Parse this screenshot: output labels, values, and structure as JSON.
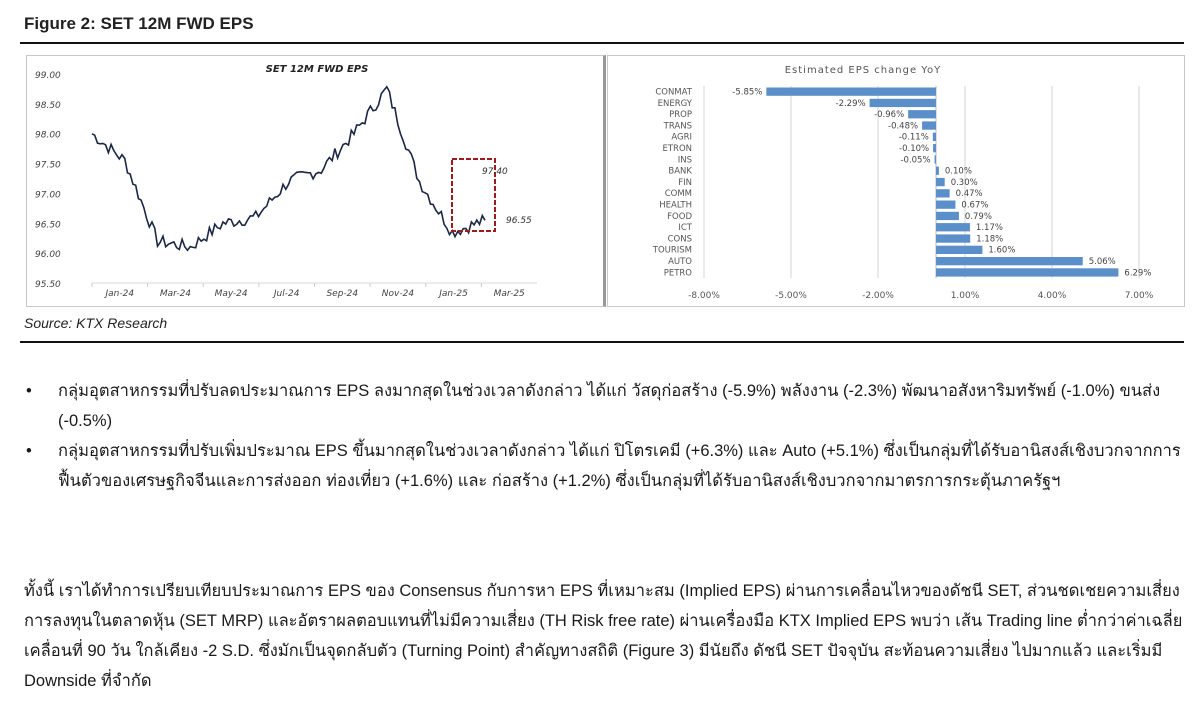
{
  "figure": {
    "title": "Figure 2: SET 12M FWD EPS",
    "source": "Source: KTX Research"
  },
  "chart_data": [
    {
      "type": "line",
      "title": "SET 12M FWD EPS",
      "xlabel": "",
      "ylabel": "",
      "x_ticks": [
        "Jan-24",
        "Mar-24",
        "May-24",
        "Jul-24",
        "Sep-24",
        "Nov-24",
        "Jan-25",
        "Mar-25"
      ],
      "y_ticks": [
        "99.00",
        "98.50",
        "98.00",
        "97.50",
        "97.00",
        "96.50",
        "96.00",
        "95.50"
      ],
      "ylim": [
        95.5,
        99.0
      ],
      "grid": false,
      "series": [
        {
          "name": "SET 12M FWD EPS",
          "x": [
            "Jan-24",
            "Feb-24",
            "Mar-24",
            "Apr-24",
            "May-24",
            "Jun-24",
            "Jul-24",
            "Aug-24",
            "Sep-24",
            "Oct-24",
            "Nov-24",
            "Dec-24",
            "Jan-25"
          ],
          "values": [
            98.0,
            97.55,
            96.2,
            96.1,
            96.5,
            96.6,
            97.2,
            97.4,
            98.0,
            98.75,
            97.2,
            96.35,
            96.55
          ]
        }
      ],
      "annotations": [
        {
          "label": "97.40",
          "note": "recent high in highlighted box"
        },
        {
          "label": "96.55",
          "note": "latest value in highlighted box"
        }
      ],
      "highlight_box_color": "#9b1c1c"
    },
    {
      "type": "bar",
      "orientation": "horizontal",
      "title": "Estimated EPS change YoY",
      "categories": [
        "CONMAT",
        "ENERGY",
        "PROP",
        "TRANS",
        "AGRI",
        "ETRON",
        "INS",
        "BANK",
        "FIN",
        "COMM",
        "HEALTH",
        "FOOD",
        "ICT",
        "CONS",
        "TOURISM",
        "AUTO",
        "PETRO"
      ],
      "values": [
        -5.85,
        -2.29,
        -0.96,
        -0.48,
        -0.11,
        -0.1,
        -0.05,
        0.1,
        0.3,
        0.47,
        0.67,
        0.79,
        1.17,
        1.18,
        1.6,
        5.06,
        6.29
      ],
      "labels": [
        "-5.85%",
        "-2.29%",
        "-0.96%",
        "-0.48%",
        "-0.11%",
        "-0.10%",
        "-0.05%",
        "0.10%",
        "0.30%",
        "0.47%",
        "0.67%",
        "0.79%",
        "1.17%",
        "1.18%",
        "1.60%",
        "5.06%",
        "6.29%"
      ],
      "x_ticks": [
        "-8.00%",
        "-5.00%",
        "-2.00%",
        "1.00%",
        "4.00%",
        "7.00%"
      ],
      "xlim": [
        -8,
        8
      ],
      "bar_color": "#5b8fc9",
      "grid": true
    }
  ],
  "bullets": [
    "กลุ่มอุตสาหกรรมที่ปรับลดประมาณการ EPS ลงมากสุดในช่วงเวลาดังกล่าว ได้แก่ วัสดุก่อสร้าง (-5.9%) พลังงาน (-2.3%) พัฒนาอสังหาริมทรัพย์ (-1.0%) ขนส่ง (-0.5%)",
    "กลุ่มอุตสาหกรรมที่ปรับเพิ่มประมาณ EPS ขึ้นมากสุดในช่วงเวลาดังกล่าว ได้แก่ ปิโตรเคมี (+6.3%) และ Auto (+5.1%) ซึ่งเป็นกลุ่มที่ได้รับอานิสงส์เชิงบวกจากการฟื้นตัวของเศรษฐกิจจีนและการส่งออก ท่องเที่ยว (+1.6%) และ ก่อสร้าง (+1.2%) ซึ่งเป็นกลุ่มที่ได้รับอานิสงส์เชิงบวกจากมาตรการกระตุ้นภาครัฐฯ"
  ],
  "bullet_symbol": "•",
  "paragraph": "ทั้งนี้ เราได้ทำการเปรียบเทียบประมาณการ EPS ของ Consensus กับการหา EPS ที่เหมาะสม (Implied EPS) ผ่านการเคลื่อนไหวของดัชนี SET, ส่วนชดเชยความเสี่ยงการลงทุนในตลาดหุ้น (SET MRP) และอัตราผลตอบแทนที่ไม่มีความเสี่ยง (TH Risk free rate) ผ่านเครื่องมือ KTX Implied EPS พบว่า เส้น Trading line ต่ำกว่าค่าเฉลี่ยเคลื่อนที่ 90 วัน ใกล้เคียง -2 S.D. ซึ่งมักเป็นจุดกลับตัว (Turning Point) สำคัญทางสถิติ (Figure 3) มีนัยถึง ดัชนี SET ปัจจุบัน สะท้อนความเสี่ยง ไปมากแล้ว และเริ่มมี Downside ที่จำกัด"
}
